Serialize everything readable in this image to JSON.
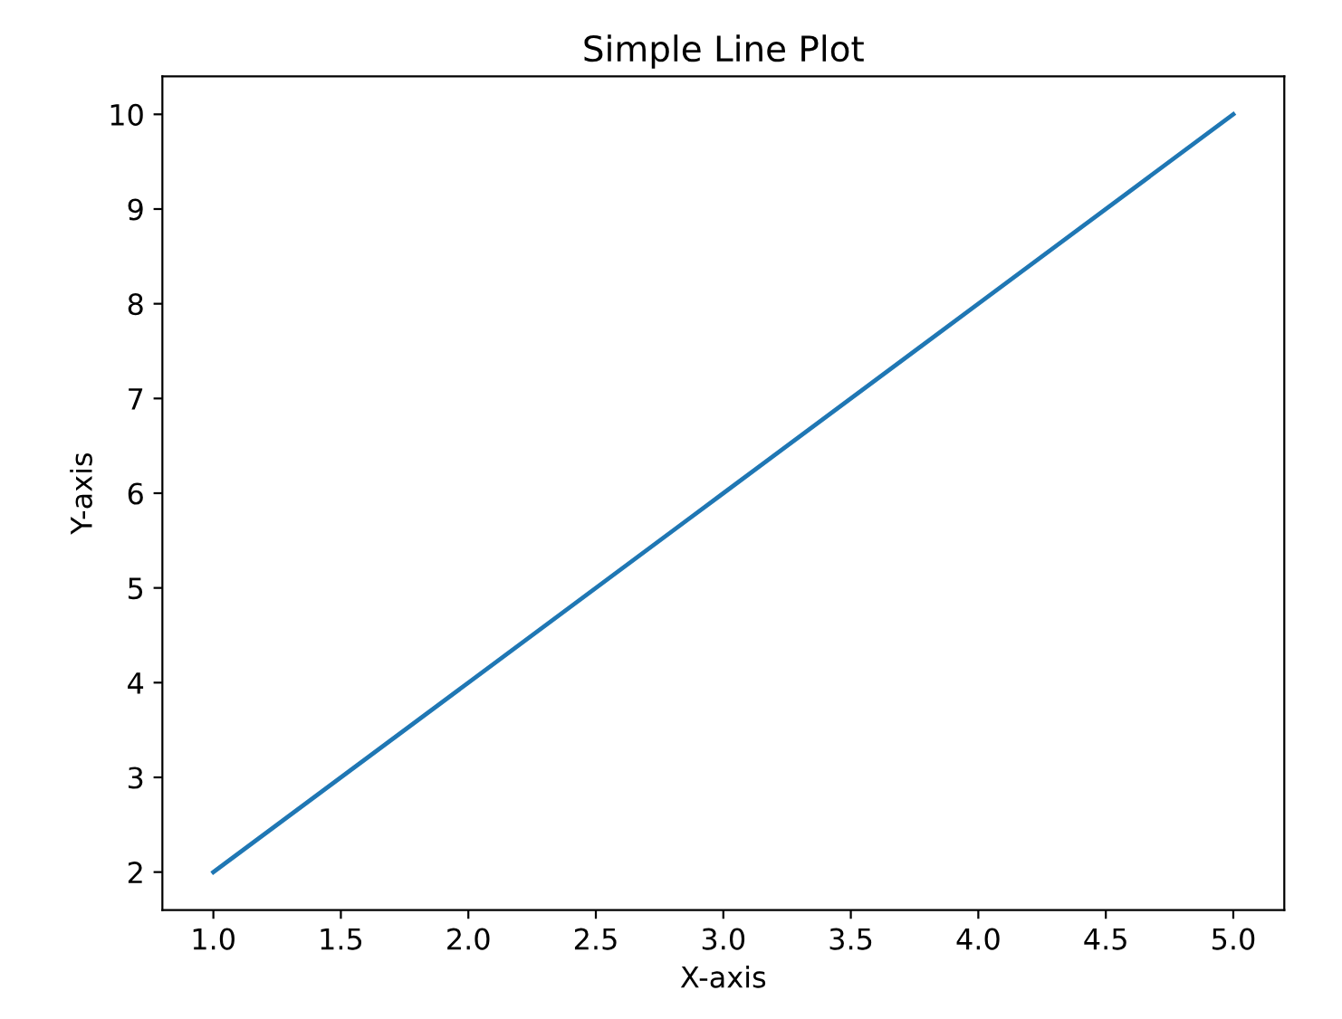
{
  "chart_data": {
    "type": "line",
    "title": "Simple Line Plot",
    "xlabel": "X-axis",
    "ylabel": "Y-axis",
    "x": [
      1,
      2,
      3,
      4,
      5
    ],
    "series": [
      {
        "color": "#1f77b4",
        "values": [
          2,
          4,
          6,
          8,
          10
        ]
      }
    ],
    "xlim": [
      0.8,
      5.2
    ],
    "ylim": [
      1.6,
      10.4
    ],
    "xticks": [
      {
        "value": 1,
        "label": "1.0"
      },
      1.5,
      {
        "value": 2,
        "label": "2.0"
      },
      2.5,
      {
        "value": 3,
        "label": "3.0"
      },
      3.5,
      {
        "value": 4,
        "label": "4.0"
      },
      4.5,
      {
        "value": 5,
        "label": "5.0"
      }
    ],
    "yticks": [
      2,
      3,
      4,
      5,
      6,
      7,
      8,
      9,
      10
    ],
    "grid": false
  }
}
